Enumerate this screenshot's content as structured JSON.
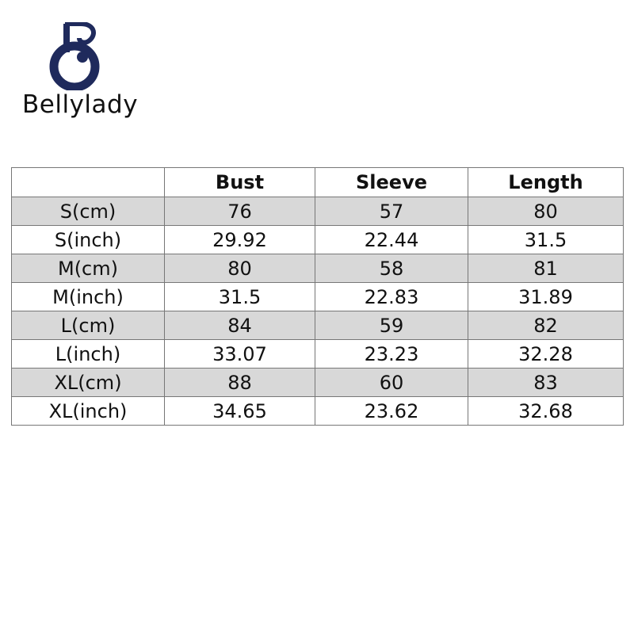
{
  "brand": {
    "name": "Bellylady",
    "logo_letter": "B",
    "logo_color": "#1f2a5c"
  },
  "table": {
    "headers": [
      "",
      "Bust",
      "Sleeve",
      "Length"
    ],
    "rows": [
      [
        "S(cm)",
        "76",
        "57",
        "80"
      ],
      [
        "S(inch)",
        "29.92",
        "22.44",
        "31.5"
      ],
      [
        "M(cm)",
        "80",
        "58",
        "81"
      ],
      [
        "M(inch)",
        "31.5",
        "22.83",
        "31.89"
      ],
      [
        "L(cm)",
        "84",
        "59",
        "82"
      ],
      [
        "L(inch)",
        "33.07",
        "23.23",
        "32.28"
      ],
      [
        "XL(cm)",
        "88",
        "60",
        "83"
      ],
      [
        "XL(inch)",
        "34.65",
        "23.62",
        "32.68"
      ]
    ],
    "shade_color": "#d8d8d8"
  }
}
